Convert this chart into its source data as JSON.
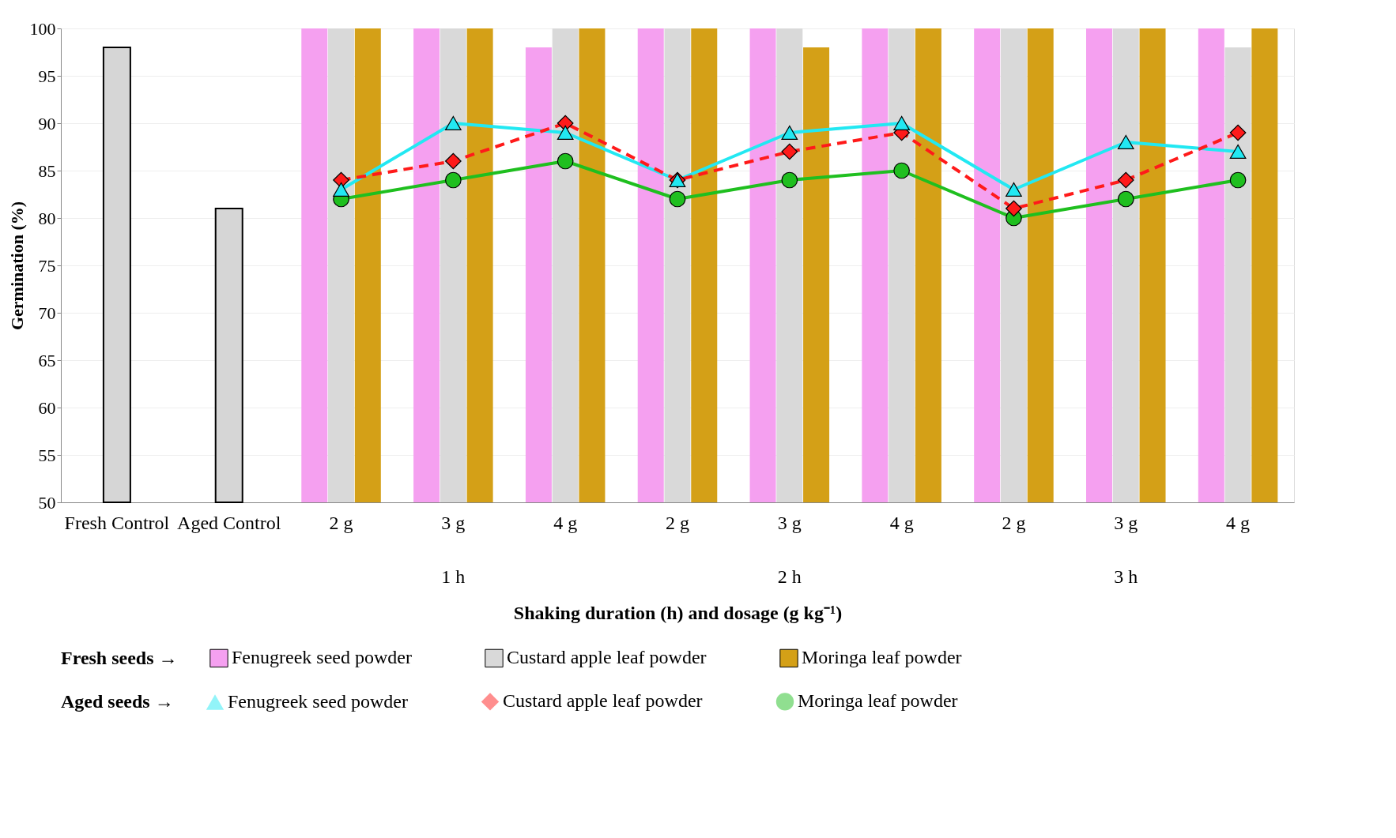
{
  "chart_data": {
    "type": "bar",
    "xlabel": "Shaking duration (h) and dosage (g kg⁻¹)",
    "ylabel": "Germination (%)",
    "categories": [
      "Fresh Control",
      "Aged Control",
      "2 g",
      "3 g",
      "4 g",
      "2 g",
      "3 g",
      "4 g",
      "2 g",
      "3 g",
      "4 g"
    ],
    "series": [
      {
        "color": "#d6d6d6",
        "values": [
          98,
          81,
          null,
          null,
          null,
          null,
          null,
          null,
          null,
          null,
          null
        ]
      },
      {
        "name": "Fenugreek seed powder",
        "color": "#f5a0f0",
        "values": [
          null,
          null,
          100,
          100,
          98,
          100,
          100,
          100,
          100,
          100,
          100
        ]
      },
      {
        "name": "Custard apple leaf powder",
        "color": "#d9d9d9",
        "values": [
          null,
          null,
          100,
          100,
          100,
          100,
          100,
          100,
          100,
          100,
          98
        ]
      },
      {
        "name": "Moringa leaf powder",
        "color": "#d4a017",
        "values": [
          null,
          null,
          100,
          100,
          100,
          100,
          98,
          100,
          100,
          100,
          100
        ]
      },
      {
        "type": "line",
        "name": "Fenugreek seed powder",
        "color": "#22e8f2",
        "marker": "triangle",
        "line_style": "solid",
        "values": [
          null,
          null,
          83,
          90,
          89,
          84,
          89,
          90,
          83,
          88,
          87
        ]
      },
      {
        "type": "line",
        "name": "Custard apple leaf powder",
        "color": "#ff1a1a",
        "marker": "diamond",
        "line_style": "dashed",
        "values": [
          null,
          null,
          84,
          86,
          90,
          84,
          87,
          89,
          81,
          84,
          89
        ]
      },
      {
        "type": "line",
        "name": "Moringa leaf powder",
        "color": "#1fbf1f",
        "marker": "circle",
        "line_style": "solid",
        "values": [
          null,
          null,
          82,
          84,
          86,
          82,
          84,
          85,
          80,
          82,
          84
        ]
      }
    ],
    "ylim": [
      50,
      100
    ],
    "yticks": [
      50,
      55,
      60,
      65,
      70,
      75,
      80,
      85,
      90,
      95,
      100
    ],
    "grid": "y",
    "legend": "bottom",
    "annotations": [
      "1 h",
      "2 h",
      "3 h",
      "Fresh seeds →",
      "Aged seeds →"
    ]
  }
}
